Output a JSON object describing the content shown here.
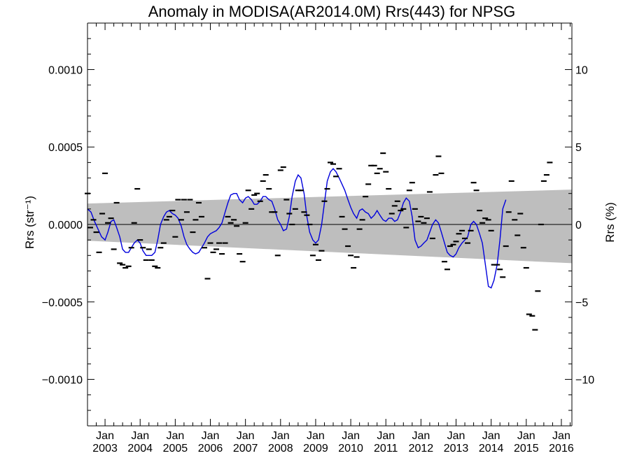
{
  "chart_data": {
    "type": "scatter",
    "title": "Anomaly in MODISA(AR2014.0M) Rrs(443) for NPSG",
    "ylabel_left": "Rrs (str⁻¹)",
    "ylabel_right": "Rrs (%)",
    "xlim": [
      2002.5,
      2016.3
    ],
    "ylim": [
      -0.0013,
      0.0013
    ],
    "ylim_right": [
      -13,
      13
    ],
    "y_ticks_left": [
      {
        "v": 0.001,
        "label": "0.0010"
      },
      {
        "v": 0.0005,
        "label": "0.0005"
      },
      {
        "v": 0.0,
        "label": "0.0000"
      },
      {
        "v": -0.0005,
        "label": "−0.0005"
      },
      {
        "v": -0.001,
        "label": "−0.0010"
      }
    ],
    "y_ticks_right": [
      {
        "v": 10,
        "label": "10"
      },
      {
        "v": 5,
        "label": "5"
      },
      {
        "v": 0,
        "label": "0"
      },
      {
        "v": -5,
        "label": "−5"
      },
      {
        "v": -10,
        "label": "−10"
      }
    ],
    "x_ticks": [
      {
        "v": 2003,
        "label1": "Jan",
        "label2": "2003"
      },
      {
        "v": 2004,
        "label1": "Jan",
        "label2": "2004"
      },
      {
        "v": 2005,
        "label1": "Jan",
        "label2": "2005"
      },
      {
        "v": 2006,
        "label1": "Jan",
        "label2": "2006"
      },
      {
        "v": 2007,
        "label1": "Jan",
        "label2": "2007"
      },
      {
        "v": 2008,
        "label1": "Jan",
        "label2": "2008"
      },
      {
        "v": 2009,
        "label1": "Jan",
        "label2": "2009"
      },
      {
        "v": 2010,
        "label1": "Jan",
        "label2": "2010"
      },
      {
        "v": 2011,
        "label1": "Jan",
        "label2": "2011"
      },
      {
        "v": 2012,
        "label1": "Jan",
        "label2": "2012"
      },
      {
        "v": 2013,
        "label1": "Jan",
        "label2": "2013"
      },
      {
        "v": 2014,
        "label1": "Jan",
        "label2": "2014"
      },
      {
        "v": 2015,
        "label1": "Jan",
        "label2": "2015"
      },
      {
        "v": 2016,
        "label1": "Jan",
        "label2": "2016"
      }
    ],
    "band": {
      "left": [
        0.000135,
        -0.000105
      ],
      "right": [
        0.000225,
        -0.00025
      ],
      "color": "#bebebe"
    },
    "zero_line": true,
    "colors": {
      "points": "#000000",
      "smooth_line": "#0000dd",
      "axis": "#000000"
    },
    "points": [
      [
        2002.5,
        0.0002
      ],
      [
        2002.58,
        -2e-05
      ],
      [
        2002.67,
        3e-05
      ],
      [
        2002.75,
        -5e-05
      ],
      [
        2002.83,
        -0.00018
      ],
      [
        2002.92,
        7e-05
      ],
      [
        2003.0,
        0.00033
      ],
      [
        2003.08,
        1e-05
      ],
      [
        2003.17,
        4e-05
      ],
      [
        2003.25,
        -0.00016
      ],
      [
        2003.33,
        0.00014
      ],
      [
        2003.42,
        -0.00025
      ],
      [
        2003.5,
        -0.00026
      ],
      [
        2003.58,
        -0.00028
      ],
      [
        2003.67,
        -0.00027
      ],
      [
        2003.75,
        -0.00015
      ],
      [
        2003.83,
        1e-05
      ],
      [
        2003.92,
        0.00023
      ],
      [
        2004.0,
        -0.0001
      ],
      [
        2004.08,
        -0.00015
      ],
      [
        2004.17,
        -0.00023
      ],
      [
        2004.25,
        -0.00016
      ],
      [
        2004.33,
        -0.00023
      ],
      [
        2004.42,
        -0.00027
      ],
      [
        2004.5,
        -0.00028
      ],
      [
        2004.58,
        -0.00015
      ],
      [
        2004.67,
        -0.00012
      ],
      [
        2004.75,
        3e-05
      ],
      [
        2004.83,
        5e-05
      ],
      [
        2004.92,
        9e-05
      ],
      [
        2005.0,
        -8e-05
      ],
      [
        2005.08,
        0.00016
      ],
      [
        2005.17,
        3e-05
      ],
      [
        2005.25,
        0.00016
      ],
      [
        2005.33,
        8e-05
      ],
      [
        2005.42,
        0.00016
      ],
      [
        2005.5,
        -5e-05
      ],
      [
        2005.58,
        3e-05
      ],
      [
        2005.67,
        0.00014
      ],
      [
        2005.75,
        5e-05
      ],
      [
        2005.83,
        -0.00015
      ],
      [
        2005.92,
        -0.00035
      ],
      [
        2006.0,
        -0.00012
      ],
      [
        2006.08,
        -0.00018
      ],
      [
        2006.17,
        -0.00016
      ],
      [
        2006.25,
        -0.00012
      ],
      [
        2006.33,
        -0.00019
      ],
      [
        2006.42,
        -0.00012
      ],
      [
        2006.5,
        5e-05
      ],
      [
        2006.58,
        1e-05
      ],
      [
        2006.67,
        3e-05
      ],
      [
        2006.75,
        -1e-05
      ],
      [
        2006.83,
        -0.00019
      ],
      [
        2006.92,
        -0.00024
      ],
      [
        2007.0,
        1e-05
      ],
      [
        2007.08,
        0.00022
      ],
      [
        2007.17,
        0.0001
      ],
      [
        2007.25,
        0.00019
      ],
      [
        2007.33,
        0.0002
      ],
      [
        2007.42,
        0.00015
      ],
      [
        2007.5,
        0.00028
      ],
      [
        2007.58,
        0.00032
      ],
      [
        2007.67,
        0.00023
      ],
      [
        2007.75,
        8e-05
      ],
      [
        2007.83,
        8e-05
      ],
      [
        2007.92,
        -0.0002
      ],
      [
        2008.0,
        0.00035
      ],
      [
        2008.08,
        0.00037
      ],
      [
        2008.17,
        0.00016
      ],
      [
        2008.25,
        7e-05
      ],
      [
        2008.33,
        0.0
      ],
      [
        2008.42,
        0.0001
      ],
      [
        2008.5,
        0.00022
      ],
      [
        2008.58,
        0.00022
      ],
      [
        2008.67,
        8e-05
      ],
      [
        2008.75,
        6e-05
      ],
      [
        2008.83,
        0.0
      ],
      [
        2008.92,
        -0.0002
      ],
      [
        2009.0,
        -0.00013
      ],
      [
        2009.08,
        -0.00023
      ],
      [
        2009.17,
        -0.00017
      ],
      [
        2009.25,
        0.00015
      ],
      [
        2009.33,
        0.00023
      ],
      [
        2009.42,
        0.0004
      ],
      [
        2009.5,
        0.00039
      ],
      [
        2009.58,
        0.00031
      ],
      [
        2009.67,
        0.00036
      ],
      [
        2009.75,
        5e-05
      ],
      [
        2009.83,
        -3e-05
      ],
      [
        2009.92,
        -0.00014
      ],
      [
        2010.0,
        -0.0002
      ],
      [
        2010.08,
        -0.00028
      ],
      [
        2010.17,
        -0.00021
      ],
      [
        2010.25,
        -3e-05
      ],
      [
        2010.33,
        3e-05
      ],
      [
        2010.42,
        0.00018
      ],
      [
        2010.5,
        0.00026
      ],
      [
        2010.58,
        0.00038
      ],
      [
        2010.67,
        0.00038
      ],
      [
        2010.75,
        0.00033
      ],
      [
        2010.83,
        0.00036
      ],
      [
        2010.92,
        0.00046
      ],
      [
        2011.0,
        0.00034
      ],
      [
        2011.08,
        0.00023
      ],
      [
        2011.17,
        7e-05
      ],
      [
        2011.25,
        0.00012
      ],
      [
        2011.33,
        0.00015
      ],
      [
        2011.42,
        9e-05
      ],
      [
        2011.5,
        0.0001
      ],
      [
        2011.58,
        -2e-05
      ],
      [
        2011.67,
        0.00022
      ],
      [
        2011.75,
        0.00027
      ],
      [
        2011.83,
        0.0001
      ],
      [
        2011.92,
        2e-05
      ],
      [
        2012.0,
        5e-05
      ],
      [
        2012.08,
        1e-05
      ],
      [
        2012.17,
        4e-05
      ],
      [
        2012.25,
        0.00021
      ],
      [
        2012.33,
        -9e-05
      ],
      [
        2012.42,
        0.00032
      ],
      [
        2012.5,
        0.00044
      ],
      [
        2012.58,
        0.00033
      ],
      [
        2012.67,
        -0.00024
      ],
      [
        2012.75,
        -0.00029
      ],
      [
        2012.83,
        -0.00014
      ],
      [
        2012.92,
        -0.00013
      ],
      [
        2013.0,
        -0.00011
      ],
      [
        2013.08,
        -6e-05
      ],
      [
        2013.17,
        -4e-05
      ],
      [
        2013.25,
        -9e-05
      ],
      [
        2013.33,
        -0.00012
      ],
      [
        2013.42,
        -4e-05
      ],
      [
        2013.5,
        0.00027
      ],
      [
        2013.58,
        0.00022
      ],
      [
        2013.67,
        9e-05
      ],
      [
        2013.75,
        1e-05
      ],
      [
        2013.83,
        4e-05
      ],
      [
        2013.92,
        3e-05
      ],
      [
        2014.0,
        -4e-05
      ],
      [
        2014.08,
        -0.00026
      ],
      [
        2014.17,
        -0.00026
      ],
      [
        2014.25,
        -0.00029
      ],
      [
        2014.33,
        -0.00034
      ],
      [
        2014.42,
        -0.00014
      ],
      [
        2014.5,
        8e-05
      ],
      [
        2014.58,
        0.00028
      ],
      [
        2014.67,
        3e-05
      ],
      [
        2014.75,
        -7e-05
      ],
      [
        2014.83,
        7e-05
      ],
      [
        2014.92,
        -0.00015
      ],
      [
        2015.0,
        -0.00028
      ],
      [
        2015.08,
        -0.00058
      ],
      [
        2015.17,
        -0.00059
      ],
      [
        2015.25,
        -0.00068
      ],
      [
        2015.33,
        -0.00043
      ],
      [
        2015.42,
        0.0
      ],
      [
        2015.5,
        0.00028
      ],
      [
        2015.58,
        0.00032
      ],
      [
        2015.67,
        0.0004
      ]
    ],
    "smooth": [
      [
        2002.5,
        0.0001
      ],
      [
        2002.6,
        8e-05
      ],
      [
        2002.7,
        2e-05
      ],
      [
        2002.8,
        -3e-05
      ],
      [
        2002.9,
        -8e-05
      ],
      [
        2003.0,
        -0.0001
      ],
      [
        2003.08,
        -5e-05
      ],
      [
        2003.17,
        2e-05
      ],
      [
        2003.25,
        3e-05
      ],
      [
        2003.33,
        -2e-05
      ],
      [
        2003.42,
        -8e-05
      ],
      [
        2003.5,
        -0.00016
      ],
      [
        2003.58,
        -0.00018
      ],
      [
        2003.67,
        -0.00018
      ],
      [
        2003.75,
        -0.00015
      ],
      [
        2003.83,
        -0.00012
      ],
      [
        2003.92,
        -0.0001
      ],
      [
        2004.0,
        -0.00012
      ],
      [
        2004.08,
        -0.00017
      ],
      [
        2004.17,
        -0.0002
      ],
      [
        2004.25,
        -0.0002
      ],
      [
        2004.33,
        -0.0002
      ],
      [
        2004.42,
        -0.00018
      ],
      [
        2004.5,
        -0.0001
      ],
      [
        2004.58,
        0.0
      ],
      [
        2004.67,
        5e-05
      ],
      [
        2004.75,
        8e-05
      ],
      [
        2004.83,
        9e-05
      ],
      [
        2004.92,
        7e-05
      ],
      [
        2005.0,
        6e-05
      ],
      [
        2005.08,
        4e-05
      ],
      [
        2005.17,
        -1e-05
      ],
      [
        2005.25,
        -8e-05
      ],
      [
        2005.33,
        -0.00013
      ],
      [
        2005.42,
        -0.00016
      ],
      [
        2005.5,
        -0.00018
      ],
      [
        2005.58,
        -0.00019
      ],
      [
        2005.67,
        -0.00018
      ],
      [
        2005.75,
        -0.00015
      ],
      [
        2005.83,
        -0.00012
      ],
      [
        2005.92,
        -8e-05
      ],
      [
        2006.0,
        -6e-05
      ],
      [
        2006.08,
        -5e-05
      ],
      [
        2006.17,
        -4e-05
      ],
      [
        2006.25,
        -2e-05
      ],
      [
        2006.33,
        1e-05
      ],
      [
        2006.42,
        8e-05
      ],
      [
        2006.5,
        0.00014
      ],
      [
        2006.58,
        0.00019
      ],
      [
        2006.67,
        0.0002
      ],
      [
        2006.75,
        0.0002
      ],
      [
        2006.83,
        0.00016
      ],
      [
        2006.92,
        0.00014
      ],
      [
        2007.0,
        0.00017
      ],
      [
        2007.08,
        0.00018
      ],
      [
        2007.17,
        0.00016
      ],
      [
        2007.25,
        0.00013
      ],
      [
        2007.33,
        0.00013
      ],
      [
        2007.42,
        0.00015
      ],
      [
        2007.5,
        0.00018
      ],
      [
        2007.58,
        0.00018
      ],
      [
        2007.67,
        0.00016
      ],
      [
        2007.75,
        0.00015
      ],
      [
        2007.83,
        0.0001
      ],
      [
        2007.92,
        3e-05
      ],
      [
        2008.0,
        0.0
      ],
      [
        2008.08,
        -4e-05
      ],
      [
        2008.17,
        -3e-05
      ],
      [
        2008.25,
        5e-05
      ],
      [
        2008.33,
        0.00018
      ],
      [
        2008.42,
        0.00028
      ],
      [
        2008.5,
        0.00032
      ],
      [
        2008.58,
        0.0003
      ],
      [
        2008.67,
        0.0002
      ],
      [
        2008.75,
        5e-05
      ],
      [
        2008.83,
        -5e-05
      ],
      [
        2008.92,
        -0.0001
      ],
      [
        2009.0,
        -0.00012
      ],
      [
        2009.08,
        -0.0001
      ],
      [
        2009.17,
        0.0
      ],
      [
        2009.25,
        0.00014
      ],
      [
        2009.33,
        0.00028
      ],
      [
        2009.42,
        0.00034
      ],
      [
        2009.5,
        0.00036
      ],
      [
        2009.58,
        0.00034
      ],
      [
        2009.67,
        0.0003
      ],
      [
        2009.75,
        0.00026
      ],
      [
        2009.83,
        0.00022
      ],
      [
        2009.92,
        0.00016
      ],
      [
        2010.0,
        0.00011
      ],
      [
        2010.08,
        7e-05
      ],
      [
        2010.17,
        4e-05
      ],
      [
        2010.25,
        9e-05
      ],
      [
        2010.33,
        0.0001
      ],
      [
        2010.42,
        8e-05
      ],
      [
        2010.5,
        7e-05
      ],
      [
        2010.58,
        4e-05
      ],
      [
        2010.67,
        6e-05
      ],
      [
        2010.75,
        9e-05
      ],
      [
        2010.83,
        6e-05
      ],
      [
        2010.92,
        3e-05
      ],
      [
        2011.0,
        2e-05
      ],
      [
        2011.08,
        4e-05
      ],
      [
        2011.17,
        4e-05
      ],
      [
        2011.25,
        2e-05
      ],
      [
        2011.33,
        3e-05
      ],
      [
        2011.42,
        8e-05
      ],
      [
        2011.5,
        0.00014
      ],
      [
        2011.58,
        0.00017
      ],
      [
        2011.67,
        0.00015
      ],
      [
        2011.75,
        5e-05
      ],
      [
        2011.83,
        -0.0001
      ],
      [
        2011.92,
        -0.00015
      ],
      [
        2012.0,
        -0.00014
      ],
      [
        2012.08,
        -0.00012
      ],
      [
        2012.17,
        -0.0001
      ],
      [
        2012.25,
        -5e-05
      ],
      [
        2012.33,
        0.0
      ],
      [
        2012.42,
        3e-05
      ],
      [
        2012.5,
        1e-05
      ],
      [
        2012.58,
        -5e-05
      ],
      [
        2012.67,
        -0.00012
      ],
      [
        2012.75,
        -0.00018
      ],
      [
        2012.83,
        -0.0002
      ],
      [
        2012.92,
        -0.00021
      ],
      [
        2013.0,
        -0.00019
      ],
      [
        2013.08,
        -0.00015
      ],
      [
        2013.17,
        -0.00012
      ],
      [
        2013.25,
        -0.0001
      ],
      [
        2013.33,
        -8e-05
      ],
      [
        2013.42,
        0.0
      ],
      [
        2013.5,
        2e-05
      ],
      [
        2013.58,
        0.0
      ],
      [
        2013.67,
        -6e-05
      ],
      [
        2013.75,
        -0.00012
      ],
      [
        2013.83,
        -0.00025
      ],
      [
        2013.92,
        -0.0004
      ],
      [
        2014.0,
        -0.00041
      ],
      [
        2014.08,
        -0.00036
      ],
      [
        2014.17,
        -0.00026
      ],
      [
        2014.25,
        -0.0001
      ],
      [
        2014.33,
        0.0001
      ],
      [
        2014.42,
        0.00016
      ]
    ]
  }
}
